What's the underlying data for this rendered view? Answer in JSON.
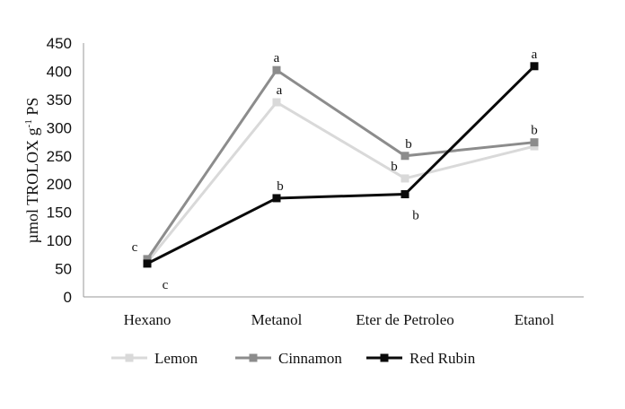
{
  "chart_data": {
    "type": "line",
    "ylabel": {
      "main": "µmol TROLOX g",
      "superscript": "-1",
      "suffix": " PS"
    },
    "ylim": [
      0,
      450
    ],
    "yticks": [
      0,
      50,
      100,
      150,
      200,
      250,
      300,
      350,
      400,
      450
    ],
    "categories": [
      "Hexano",
      "Metanol",
      "Eter de Petroleo",
      "Etanol"
    ],
    "grid": false,
    "legend_position": "bottom",
    "series": [
      {
        "name": "Lemon",
        "color": "#d9d9d9",
        "values": [
          62,
          345,
          210,
          267
        ],
        "labels": [
          "",
          "a",
          "b",
          ""
        ]
      },
      {
        "name": "Cinnamon",
        "color": "#8c8c8c",
        "values": [
          67,
          402,
          250,
          274
        ],
        "labels": [
          "c",
          "a",
          "b",
          "b"
        ]
      },
      {
        "name": "Red Rubin",
        "color": "#0a0a0a",
        "values": [
          59,
          175,
          182,
          409
        ],
        "labels": [
          "c",
          "b",
          "b",
          "a"
        ]
      }
    ]
  }
}
